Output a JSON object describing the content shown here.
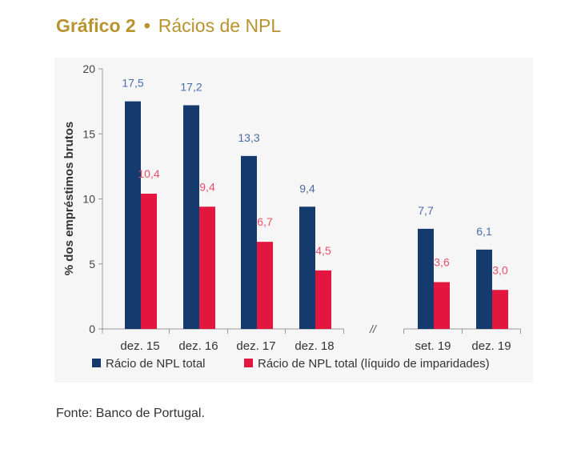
{
  "figure": {
    "label": "Gráfico 2",
    "separator": "•",
    "title": "Rácios de NPL",
    "source": "Fonte: Banco de Portugal."
  },
  "chart_data": {
    "type": "bar",
    "ylabel": "% dos empréstimos brutos",
    "xlabel": "",
    "ylim": [
      0,
      20
    ],
    "yticks": [
      0,
      5,
      10,
      15,
      20
    ],
    "grid": false,
    "axis_break_label": "//",
    "axis_break_after": "dez. 18",
    "categories": [
      "dez. 15",
      "dez. 16",
      "dez. 17",
      "dez. 18",
      "set. 19",
      "dez. 19"
    ],
    "series": [
      {
        "name": "Rácio de NPL total",
        "color": "#143a6e",
        "label_color": "#4a6ea9",
        "values": [
          17.5,
          17.2,
          13.3,
          9.4,
          7.7,
          6.1
        ],
        "labels": [
          "17,5",
          "17,2",
          "13,3",
          "9,4",
          "7,7",
          "6,1"
        ]
      },
      {
        "name": "Rácio de NPL total (líquido de imparidades)",
        "color": "#e2163f",
        "label_color": "#e8506a",
        "values": [
          10.4,
          9.4,
          6.7,
          4.5,
          3.6,
          3.0
        ],
        "labels": [
          "10,4",
          "9,4",
          "6,7",
          "4,5",
          "3,6",
          "3,0"
        ]
      }
    ],
    "legend_position": "bottom"
  }
}
